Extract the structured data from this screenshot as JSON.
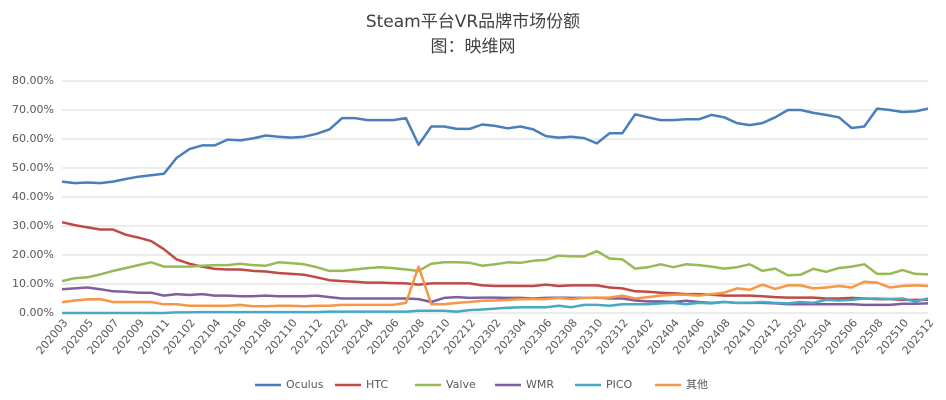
{
  "chart_data": {
    "type": "line",
    "title": "Steam平台VR品牌市场份额",
    "subtitle": "图：映维网",
    "categories": [
      "202003",
      null,
      "202005",
      null,
      "202007",
      null,
      "202009",
      null,
      "202011",
      null,
      "202102",
      null,
      "202104",
      null,
      "202106",
      null,
      "202108",
      null,
      "202110",
      null,
      "202112",
      null,
      "202202",
      null,
      "202204",
      null,
      "202206",
      null,
      "202208",
      null,
      "202210",
      null,
      "202212",
      null,
      "202302",
      null,
      "202304",
      null,
      "202306",
      null,
      "202308",
      null,
      "202310",
      null,
      "202312",
      null,
      "202402",
      null,
      "202404",
      null,
      "202406",
      null,
      "202408",
      null,
      "202410",
      null,
      "202412",
      null,
      "202502",
      null,
      "202504",
      null,
      "202506",
      null,
      "202508",
      null,
      "202510",
      null,
      "202512"
    ],
    "series": [
      {
        "name": "Oculus",
        "color": "#4a7ebb",
        "values": [
          45.3,
          44.8,
          45,
          44.8,
          45.3,
          46.2,
          47,
          47.5,
          48,
          53.5,
          56.5,
          57.8,
          57.8,
          59.8,
          59.5,
          60.2,
          61.2,
          60.8,
          60.5,
          60.8,
          61.8,
          63.3,
          67.2,
          67.2,
          66.5,
          66.5,
          66.5,
          67.2,
          58,
          64.3,
          64.3,
          63.5,
          63.5,
          65,
          64.5,
          63.7,
          64.3,
          63.3,
          61,
          60.5,
          60.8,
          60.3,
          58.5,
          62,
          62,
          68.5,
          67.5,
          66.5,
          66.5,
          66.8,
          66.8,
          68.3,
          67.5,
          65.5,
          64.8,
          65.5,
          67.5,
          70,
          70,
          69,
          68.3,
          67.5,
          63.8,
          64.3,
          70.5,
          70,
          69.3,
          69.5,
          70.5
        ]
      },
      {
        "name": "HTC",
        "color": "#be4b48",
        "values": [
          31.3,
          30.3,
          29.5,
          28.8,
          28.8,
          27,
          26,
          24.8,
          22,
          18.5,
          17,
          16,
          15.2,
          15,
          15,
          14.5,
          14.3,
          13.8,
          13.5,
          13.2,
          12.3,
          11.3,
          11,
          10.8,
          10.5,
          10.5,
          10.3,
          10.2,
          9.8,
          10.2,
          10.2,
          10.2,
          10.2,
          9.5,
          9.3,
          9.3,
          9.3,
          9.3,
          9.8,
          9.3,
          9.5,
          9.5,
          9.5,
          8.8,
          8.5,
          7.5,
          7.3,
          7,
          6.8,
          6.5,
          6.5,
          6.3,
          6,
          6,
          6,
          5.8,
          5.5,
          5.3,
          5.3,
          5.3,
          5,
          5,
          5.2,
          5,
          4.8,
          4.8,
          4.5,
          4.5,
          4.5
        ]
      },
      {
        "name": "Valve",
        "color": "#98b954",
        "values": [
          11,
          12,
          12.3,
          13.3,
          14.5,
          15.5,
          16.5,
          17.5,
          16,
          16,
          16,
          16.3,
          16.5,
          16.5,
          17,
          16.5,
          16.3,
          17.5,
          17.2,
          16.8,
          15.8,
          14.5,
          14.5,
          15,
          15.5,
          15.8,
          15.5,
          15,
          14.5,
          17,
          17.5,
          17.5,
          17.3,
          16.3,
          16.8,
          17.5,
          17.3,
          18,
          18.3,
          19.8,
          19.5,
          19.5,
          21.3,
          18.8,
          18.5,
          15.3,
          15.8,
          16.8,
          15.8,
          16.8,
          16.5,
          16,
          15.3,
          15.8,
          16.8,
          14.5,
          15.3,
          13,
          13.2,
          15.2,
          14.2,
          15.5,
          16,
          16.8,
          13.5,
          13.5,
          14.8,
          13.5,
          13.3
        ]
      },
      {
        "name": "WMR",
        "color": "#7d60a0",
        "values": [
          8.2,
          8.5,
          8.8,
          8.2,
          7.5,
          7.3,
          7,
          7,
          6,
          6.5,
          6.2,
          6.5,
          6,
          6,
          5.8,
          5.8,
          6,
          5.8,
          5.8,
          5.8,
          6,
          5.5,
          5,
          5,
          5,
          5,
          5,
          5,
          4.8,
          3.8,
          5.2,
          5.5,
          5.2,
          5.3,
          5.3,
          5.2,
          5.2,
          5,
          5.2,
          5.3,
          5.2,
          5.2,
          5.3,
          5,
          5,
          4.3,
          4,
          4,
          3.8,
          4.2,
          3.8,
          3.5,
          3.8,
          3.5,
          3.5,
          3.5,
          3.3,
          3,
          3,
          3,
          3,
          3,
          3,
          2.8,
          2.8,
          2.8,
          3.2,
          3.2,
          3.3
        ]
      },
      {
        "name": "PICO",
        "color": "#46aac5",
        "values": [
          0,
          0,
          0,
          0,
          0,
          0,
          0,
          0,
          0,
          0.2,
          0.2,
          0.3,
          0.3,
          0.3,
          0.3,
          0.3,
          0.3,
          0.3,
          0.3,
          0.3,
          0.3,
          0.5,
          0.5,
          0.5,
          0.5,
          0.5,
          0.5,
          0.5,
          0.8,
          0.8,
          0.8,
          0.5,
          1,
          1.2,
          1.5,
          1.8,
          2,
          2,
          2,
          2.5,
          2,
          2.8,
          2.8,
          2.5,
          3,
          3,
          3,
          3.3,
          3.5,
          3,
          3.5,
          3.3,
          3.8,
          3.5,
          3.5,
          3.8,
          3.5,
          3.3,
          3.8,
          3.5,
          4.5,
          4.3,
          4.5,
          5,
          5,
          4.8,
          5,
          4,
          5
        ]
      },
      {
        "name": "其他",
        "color": "#f79646",
        "values": [
          3.7,
          4.3,
          4.7,
          4.8,
          3.8,
          3.8,
          3.8,
          3.8,
          3,
          3,
          2.5,
          2.5,
          2.5,
          2.5,
          2.8,
          2.3,
          2.3,
          2.5,
          2.5,
          2.3,
          2.5,
          2.5,
          2.8,
          2.8,
          2.8,
          2.8,
          2.8,
          3.5,
          16,
          3,
          3,
          3.5,
          3.8,
          4.2,
          4.3,
          4.5,
          4.8,
          4.8,
          4.8,
          5.2,
          4.8,
          5.2,
          5.3,
          5.3,
          6,
          5,
          5.5,
          6,
          6.3,
          6.3,
          6,
          6.5,
          7,
          8.5,
          8,
          9.8,
          8.3,
          9.5,
          9.5,
          8.5,
          8.8,
          9.3,
          8.8,
          10.8,
          10.5,
          8.8,
          9.3,
          9.5,
          9.3
        ]
      }
    ],
    "ylim": [
      0,
      80
    ],
    "yticks": [
      {
        "value": 0,
        "label": "0.00%"
      },
      {
        "value": 10,
        "label": "10.00%"
      },
      {
        "value": 20,
        "label": "20.00%"
      },
      {
        "value": 30,
        "label": "30.00%"
      },
      {
        "value": 40,
        "label": "40.00%"
      },
      {
        "value": 50,
        "label": "50.00%"
      },
      {
        "value": 60,
        "label": "60.00%"
      },
      {
        "value": 70,
        "label": "70.00%"
      },
      {
        "value": 80,
        "label": "80.00%"
      }
    ],
    "grid": true,
    "legend": "bottom"
  }
}
